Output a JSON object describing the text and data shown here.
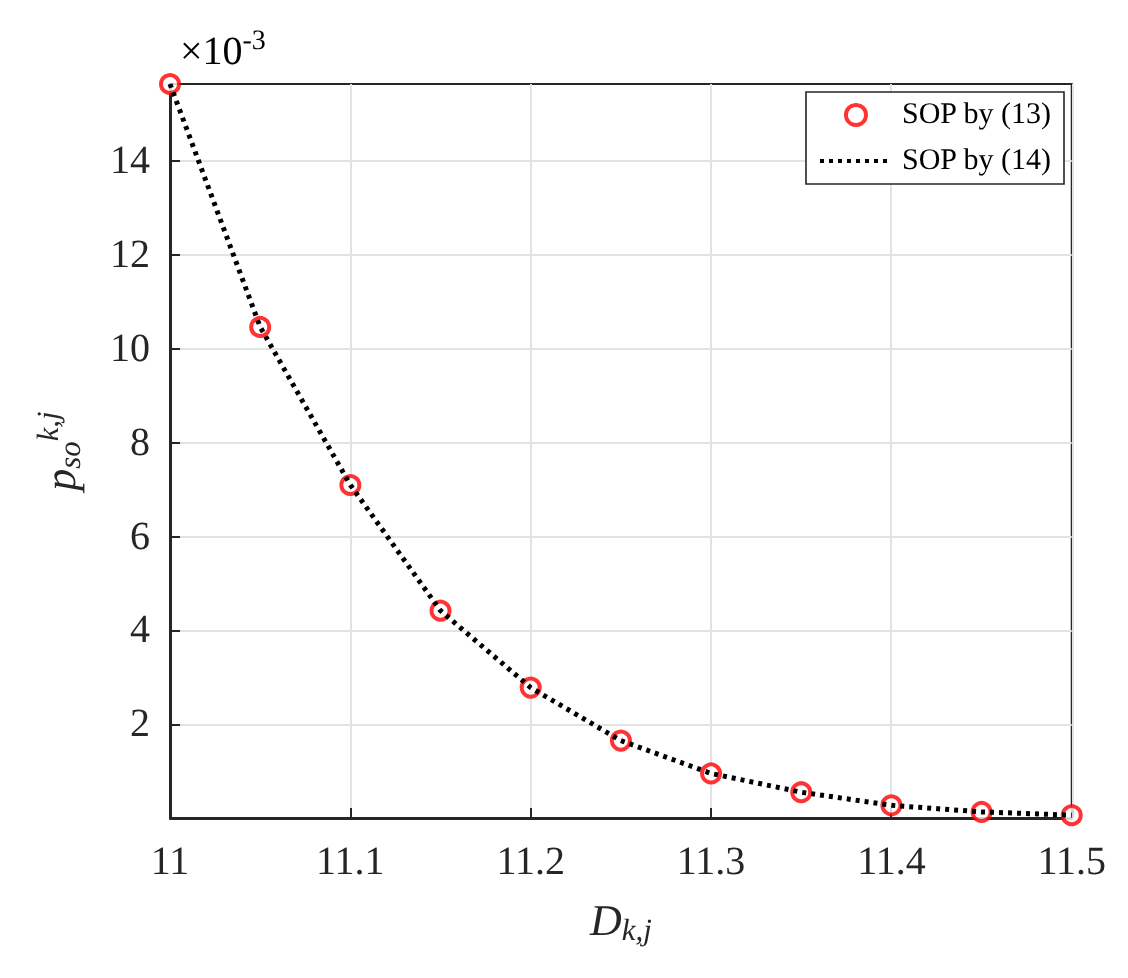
{
  "chart_data": {
    "type": "line",
    "xlabel": "D$_{k,j}$",
    "ylabel": "p$_{so}$$^{k,j}$",
    "annotations": [
      "×10$^{-3}$"
    ],
    "xlim": [
      11,
      11.5
    ],
    "xticks": [
      11,
      11.1,
      11.2,
      11.3,
      11.4,
      11.5
    ],
    "ylim": [
      0,
      15.65
    ],
    "yticks": [
      2,
      4,
      6,
      8,
      10,
      12,
      14
    ],
    "grid": true,
    "legend": "top right",
    "series": [
      {
        "name": "SOP by (13)",
        "type": "scatter",
        "marker": "circle",
        "color": "#ff0000",
        "x": [
          11,
          11.05,
          11.1,
          11.15,
          11.2,
          11.25,
          11.3,
          11.35,
          11.4,
          11.45,
          11.5
        ],
        "values": [
          15.65,
          10.47,
          7.1,
          4.42,
          2.78,
          1.65,
          0.95,
          0.55,
          0.27,
          0.13,
          0.06
        ]
      },
      {
        "name": "SOP by (14)",
        "type": "line",
        "marker": "none",
        "line_style": "dotted",
        "color": "#000000",
        "x": [
          11,
          11.05,
          11.1,
          11.15,
          11.2,
          11.25,
          11.3,
          11.35,
          11.4,
          11.45,
          11.5
        ],
        "values": [
          15.65,
          10.47,
          7.1,
          4.42,
          2.78,
          1.65,
          0.95,
          0.55,
          0.27,
          0.13,
          0.06
        ]
      }
    ]
  }
}
